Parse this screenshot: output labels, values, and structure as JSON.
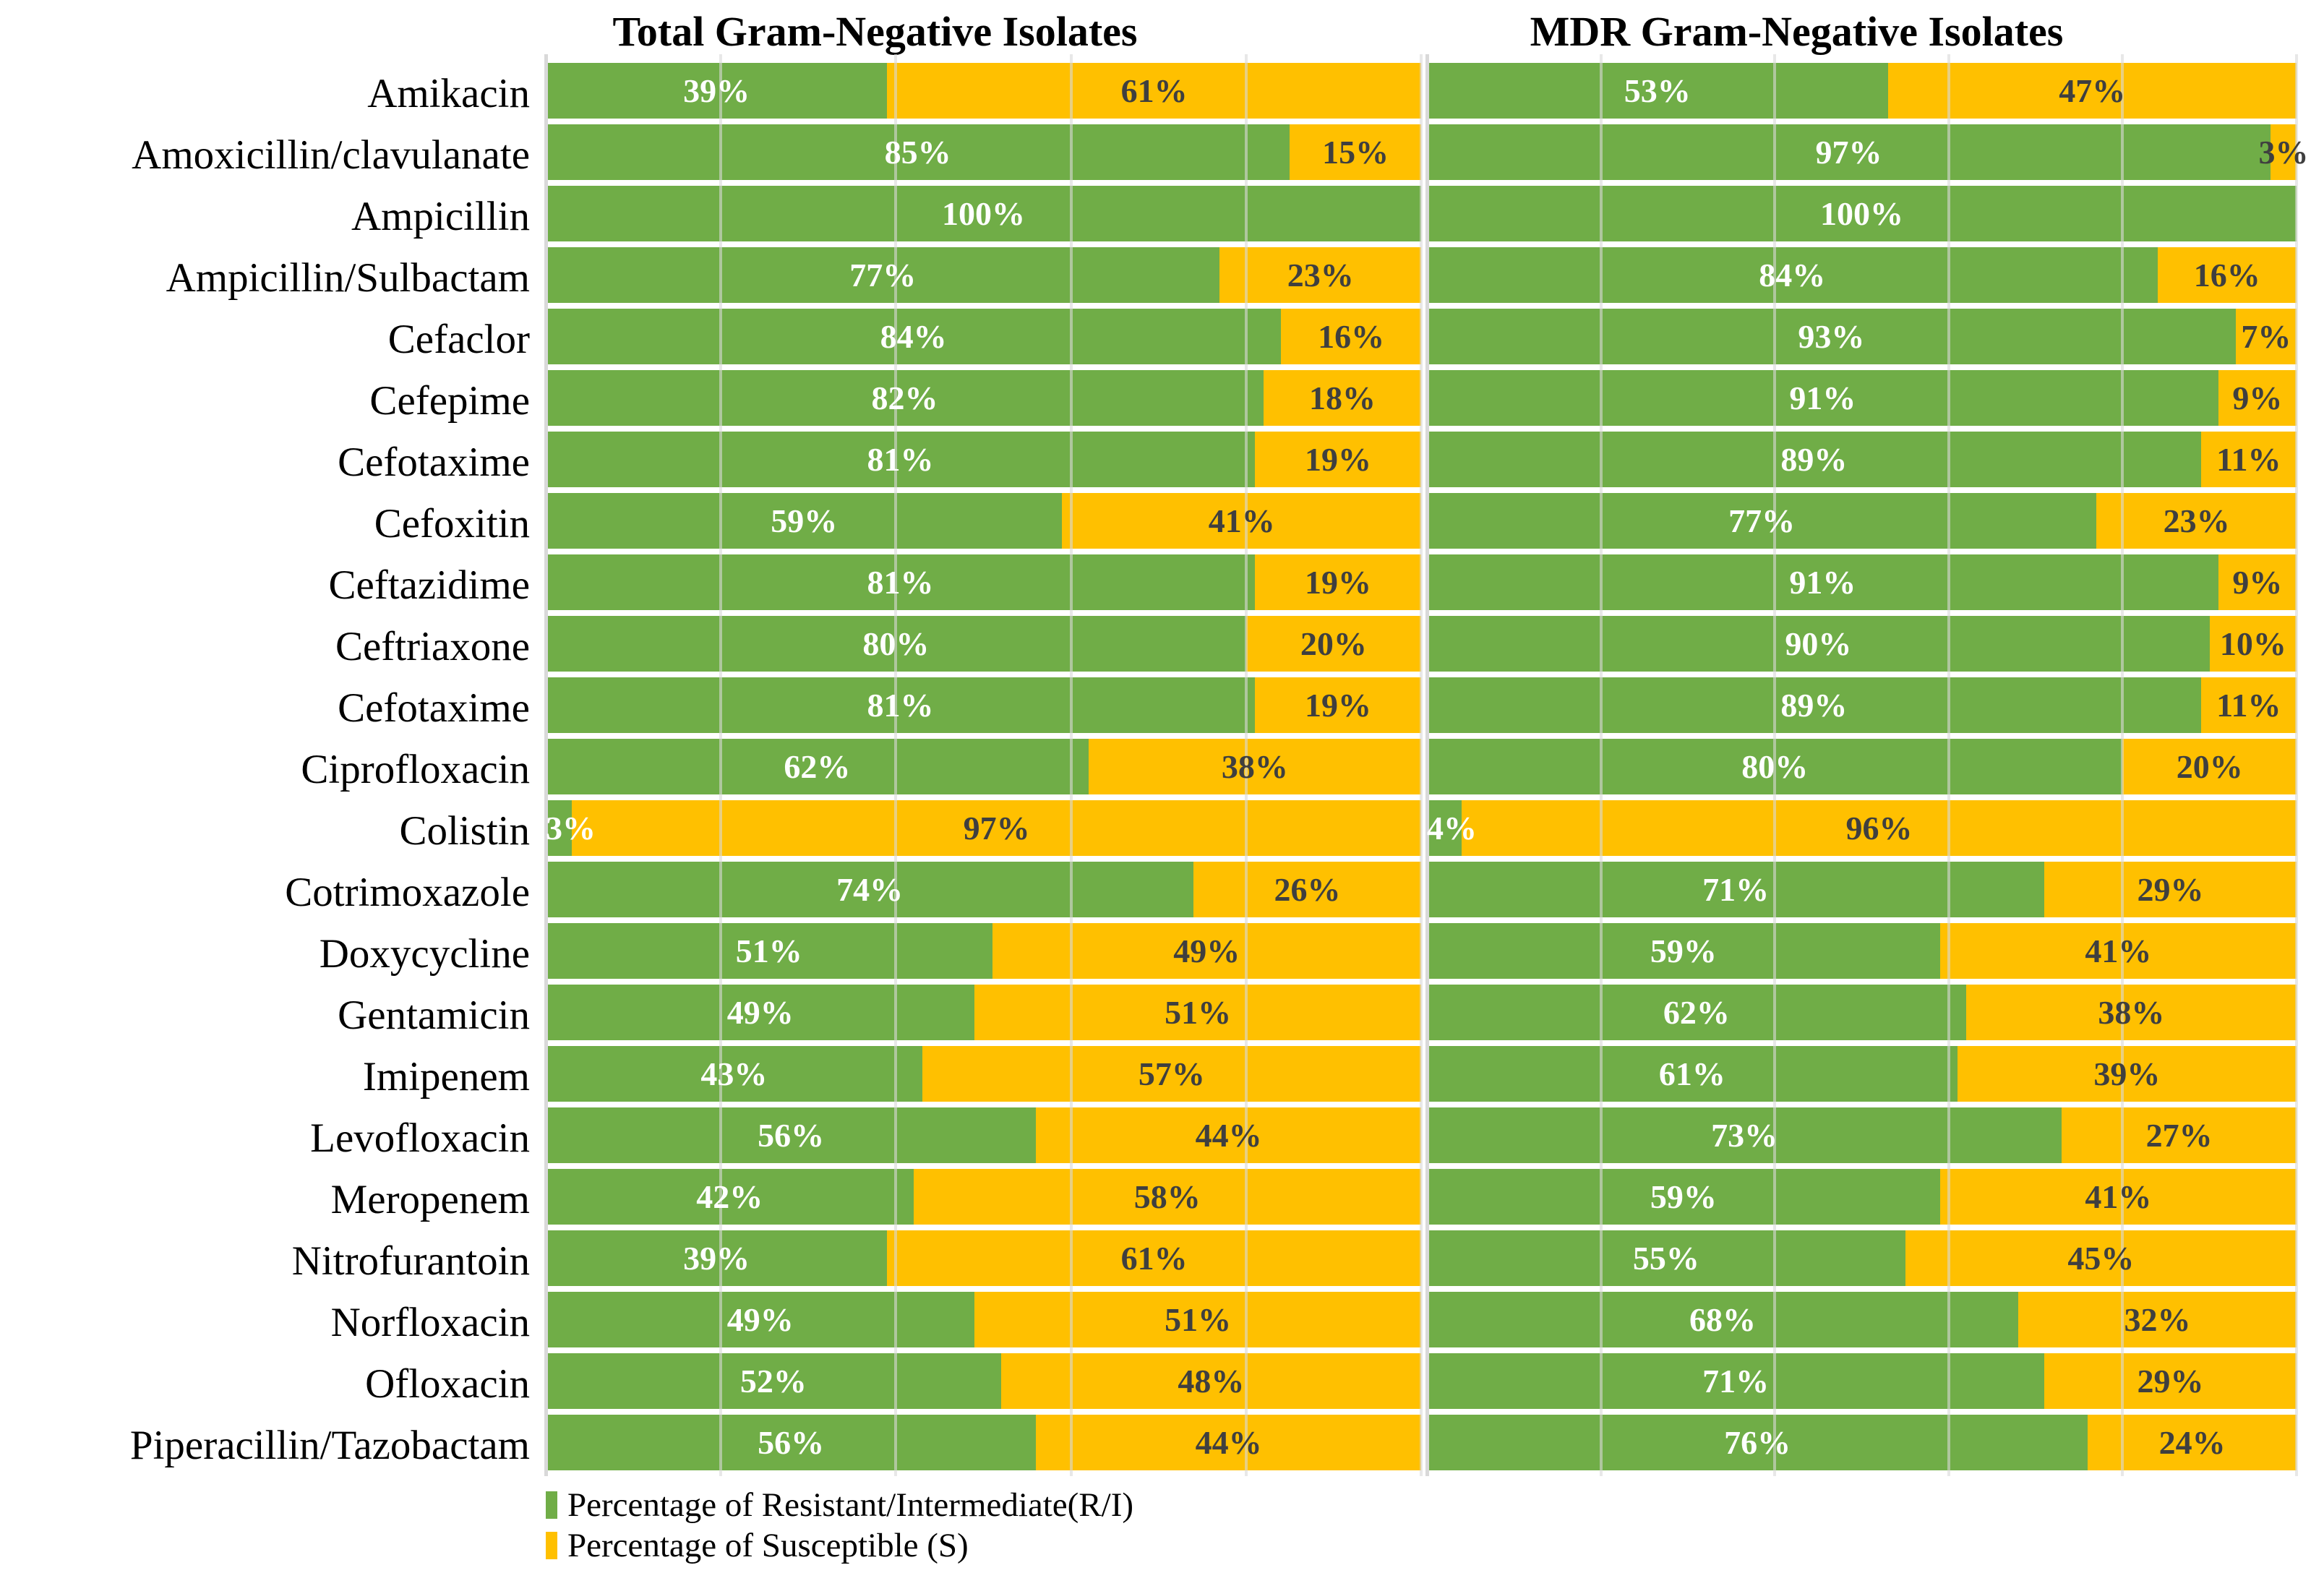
{
  "figure": {
    "left_panel_title": "Total Gram-Negative Isolates",
    "right_panel_title": "MDR Gram-Negative Isolates"
  },
  "legend": {
    "items": [
      {
        "label": "Percentage of Resistant/Intermediate(R/I)",
        "color": "#70AD47",
        "series_key": "resistant"
      },
      {
        "label": "Percentage of Susceptible (S)",
        "color": "#FFC000",
        "series_key": "susceptible"
      }
    ]
  },
  "chart_data": {
    "type": "bar",
    "orientation": "horizontal-stacked",
    "value_format": "percent",
    "axis_range": [
      0,
      100
    ],
    "gridlines": {
      "interval_pct": 20,
      "color": "#D9D9D9",
      "visible": true
    },
    "legend_position": "bottom-left",
    "colors": {
      "resistant": "#70AD47",
      "susceptible": "#FFC000"
    },
    "label_text_colors": {
      "on_resistant": "#FFFFFF",
      "on_susceptible": "#3F3F3F"
    },
    "categories": [
      "Amikacin",
      "Amoxicillin/clavulanate",
      "Ampicillin",
      "Ampicillin/Sulbactam",
      "Cefaclor",
      "Cefepime",
      "Cefotaxime",
      "Cefoxitin",
      "Ceftazidime",
      "Ceftriaxone",
      "Cefotaxime",
      "Ciprofloxacin",
      "Colistin",
      "Cotrimoxazole",
      "Doxycycline",
      "Gentamicin",
      "Imipenem",
      "Levofloxacin",
      "Meropenem",
      "Nitrofurantoin",
      "Norfloxacin",
      "Ofloxacin",
      "Piperacillin/Tazobactam"
    ],
    "panels": [
      {
        "title": "Total Gram-Negative Isolates",
        "series": [
          {
            "name": "Percentage of Resistant/Intermediate(R/I)",
            "values": [
              39,
              85,
              100,
              77,
              84,
              82,
              81,
              59,
              81,
              80,
              81,
              62,
              3,
              74,
              51,
              49,
              43,
              56,
              42,
              39,
              49,
              52,
              56
            ]
          },
          {
            "name": "Percentage of Susceptible (S)",
            "values": [
              61,
              15,
              0,
              23,
              16,
              18,
              19,
              41,
              19,
              20,
              19,
              38,
              97,
              26,
              49,
              51,
              57,
              44,
              58,
              61,
              51,
              48,
              44
            ]
          }
        ]
      },
      {
        "title": "MDR Gram-Negative Isolates",
        "series": [
          {
            "name": "Percentage of Resistant/Intermediate(R/I)",
            "values": [
              53,
              97,
              100,
              84,
              93,
              91,
              89,
              77,
              91,
              90,
              89,
              80,
              4,
              71,
              59,
              62,
              61,
              73,
              59,
              55,
              68,
              71,
              76
            ]
          },
          {
            "name": "Percentage of Susceptible (S)",
            "values": [
              47,
              3,
              0,
              16,
              7,
              9,
              11,
              23,
              9,
              10,
              11,
              20,
              96,
              29,
              41,
              38,
              39,
              27,
              41,
              45,
              32,
              29,
              24
            ]
          }
        ]
      }
    ]
  }
}
